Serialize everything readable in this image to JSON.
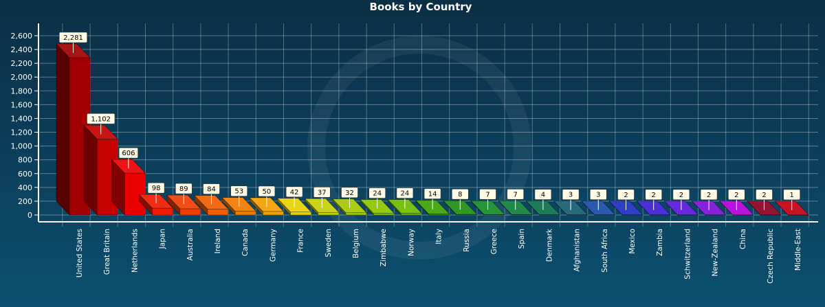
{
  "chart_data": {
    "type": "bar",
    "title": "Books by Country",
    "xlabel": "",
    "ylabel": "",
    "ylim": [
      0,
      2600
    ],
    "yticks": [
      0,
      200,
      400,
      600,
      800,
      1000,
      1200,
      1400,
      1600,
      1800,
      2000,
      2200,
      2400,
      2600
    ],
    "ytick_labels": [
      "0",
      "200",
      "400",
      "600",
      "800",
      "1,000",
      "1,200",
      "1,400",
      "1,600",
      "1,800",
      "2,000",
      "2,200",
      "2,400",
      "2,600"
    ],
    "grid": true,
    "categories": [
      "United States",
      "Great Britain",
      "Netherlands",
      "Japan",
      "Australia",
      "Ireland",
      "Canada",
      "Germany",
      "France",
      "Sweden",
      "Belgium",
      "Zimbabwe",
      "Norway",
      "Italy",
      "Russia",
      "Greece",
      "Spain",
      "Denmark",
      "Afghanistan",
      "South Africa",
      "Mexico",
      "Zambia",
      "Schwitzerland",
      "New-Zealand",
      "China",
      "Czech Republic",
      "Middle-East"
    ],
    "values": [
      2281,
      1102,
      606,
      98,
      89,
      84,
      53,
      50,
      42,
      37,
      32,
      24,
      24,
      14,
      8,
      7,
      7,
      4,
      3,
      3,
      2,
      2,
      2,
      2,
      2,
      2,
      1
    ],
    "value_labels": [
      "2,281",
      "1,102",
      "606",
      "98",
      "89",
      "84",
      "53",
      "50",
      "42",
      "37",
      "32",
      "24",
      "24",
      "14",
      "8",
      "7",
      "7",
      "4",
      "3",
      "3",
      "2",
      "2",
      "2",
      "2",
      "2",
      "2",
      "1"
    ],
    "bar_colors": [
      "#a10000",
      "#c40000",
      "#ea0000",
      "#ef1b00",
      "#f03e00",
      "#f25d00",
      "#f07a00",
      "#f0a000",
      "#e6d200",
      "#c5d000",
      "#a5c800",
      "#8cc400",
      "#6cba00",
      "#3aa100",
      "#1f8e10",
      "#158a28",
      "#0e7f3a",
      "#0b6f48",
      "#145d70",
      "#1a4aa8",
      "#1d2dbd",
      "#3a1dd4",
      "#5818d6",
      "#7a10d8",
      "#b000d8",
      "#8a001e",
      "#c00010"
    ]
  }
}
